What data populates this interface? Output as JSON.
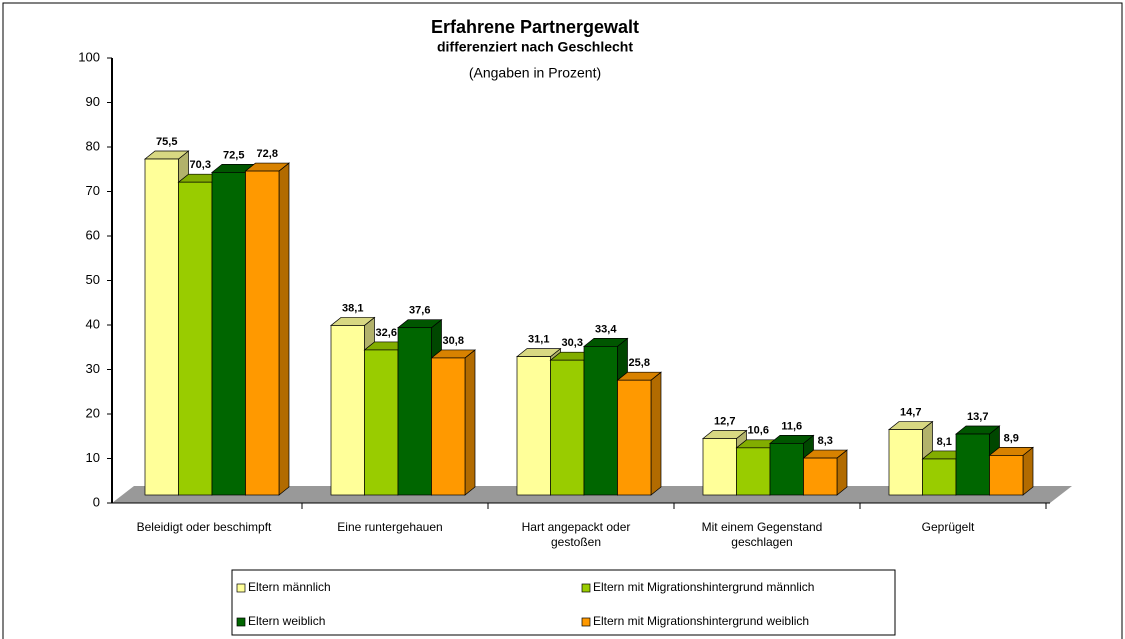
{
  "chart_data": {
    "type": "bar3d",
    "title": "Erfahrene Partnergewalt",
    "subtitle": "differenziert nach Geschlecht",
    "note": "(Angaben in Prozent)",
    "categories": [
      "Beleidigt oder beschimpft",
      "Eine runtergehauen",
      "Hart angepackt oder\ngestoßen",
      "Mit einem Gegenstand\ngeschlagen",
      "Geprügelt"
    ],
    "series": [
      {
        "name": "Eltern männlich",
        "color": "#ffff99",
        "values": [
          75.5,
          38.1,
          31.1,
          12.7,
          14.7
        ],
        "value_labels": [
          "75,5",
          "38,1",
          "31,1",
          "12,7",
          "14,7"
        ]
      },
      {
        "name": "Eltern mit Migrationshintergrund männlich",
        "color": "#99cc00",
        "values": [
          70.3,
          32.6,
          30.3,
          10.6,
          8.1
        ],
        "value_labels": [
          "70,3",
          "32,6",
          "30,3",
          "10,6",
          "8,1"
        ]
      },
      {
        "name": "Eltern weiblich",
        "color": "#006600",
        "values": [
          72.5,
          37.6,
          33.4,
          11.6,
          13.7
        ],
        "value_labels": [
          "72,5",
          "37,6",
          "33,4",
          "11,6",
          "13,7"
        ]
      },
      {
        "name": "Eltern mit Migrationshintergrund weiblich",
        "color": "#ff9900",
        "values": [
          72.8,
          30.8,
          25.8,
          8.3,
          8.9
        ],
        "value_labels": [
          "72,8",
          "30,8",
          "25,8",
          "8,3",
          "8,9"
        ]
      }
    ],
    "ylim": [
      0,
      100
    ],
    "yticks": [
      0,
      10,
      20,
      30,
      40,
      50,
      60,
      70,
      80,
      90,
      100
    ]
  }
}
